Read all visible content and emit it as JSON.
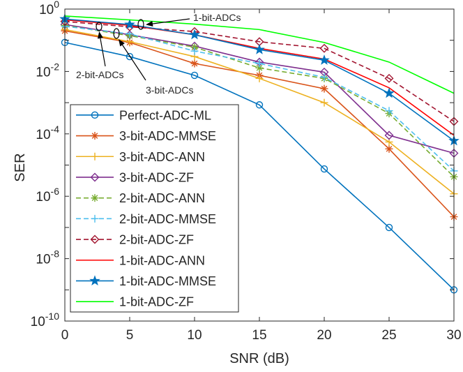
{
  "chart_data": {
    "type": "line",
    "title": "",
    "xlabel": "SNR (dB)",
    "ylabel": "SER",
    "xlim": [
      0,
      30
    ],
    "ylim": [
      1e-10,
      1
    ],
    "yscale": "log",
    "grid": false,
    "legend_position": "bottom-left",
    "x_ticks": [
      0,
      5,
      10,
      15,
      20,
      25,
      30
    ],
    "y_tick_bases": [
      "10",
      "10",
      "10",
      "10",
      "10",
      "10"
    ],
    "y_tick_exponents": [
      "0",
      "-2",
      "-4",
      "-6",
      "-8",
      "-10"
    ],
    "x": [
      0,
      5,
      10,
      15,
      20,
      25,
      30
    ],
    "series": [
      {
        "name": "Perfect-ADC-ML",
        "color": "#0072BD",
        "dash": "solid",
        "marker": "circle",
        "values": [
          0.085,
          0.03,
          0.0075,
          0.00085,
          7.5e-06,
          1e-07,
          1e-09
        ]
      },
      {
        "name": "3-bit-ADC-MMSE",
        "color": "#D95319",
        "dash": "solid",
        "marker": "asterisk",
        "values": [
          0.2,
          0.085,
          0.018,
          0.0075,
          0.0028,
          3.3e-05,
          2.2e-07
        ]
      },
      {
        "name": "3-bit-ADC-ANN",
        "color": "#EDB120",
        "dash": "solid",
        "marker": "plus",
        "values": [
          0.22,
          0.09,
          0.03,
          0.006,
          0.001,
          5.5e-05,
          1.2e-06
        ]
      },
      {
        "name": "3-bit-ADC-ZF",
        "color": "#7E2F8E",
        "dash": "solid",
        "marker": "diamond",
        "values": [
          0.32,
          0.15,
          0.065,
          0.02,
          0.0095,
          9e-05,
          2.4e-05
        ]
      },
      {
        "name": "2-bit-ADC-ANN",
        "color": "#77AC30",
        "dash": "dashed",
        "marker": "asterisk",
        "values": [
          0.3,
          0.14,
          0.06,
          0.013,
          0.006,
          0.00045,
          4.2e-06
        ]
      },
      {
        "name": "2-bit-ADC-MMSE",
        "color": "#4DBEEE",
        "dash": "dashed",
        "marker": "plus",
        "values": [
          0.28,
          0.16,
          0.045,
          0.018,
          0.0065,
          0.00055,
          6.5e-06
        ]
      },
      {
        "name": "2-bit-ADC-ZF",
        "color": "#A2142F",
        "dash": "dashed",
        "marker": "diamond",
        "values": [
          0.4,
          0.27,
          0.19,
          0.09,
          0.055,
          0.006,
          0.00025
        ]
      },
      {
        "name": "1-bit-ADC-ANN",
        "color": "#FF0000",
        "dash": "solid",
        "marker": "none",
        "values": [
          0.45,
          0.3,
          0.15,
          0.055,
          0.025,
          0.003,
          9e-05
        ]
      },
      {
        "name": "1-bit-ADC-MMSE",
        "color": "#0072BD",
        "dash": "solid",
        "marker": "star",
        "values": [
          0.48,
          0.32,
          0.15,
          0.05,
          0.023,
          0.002,
          6e-05
        ]
      },
      {
        "name": "1-bit-ADC-ZF",
        "color": "#00FF00",
        "dash": "solid",
        "marker": "none",
        "values": [
          0.6,
          0.45,
          0.33,
          0.22,
          0.085,
          0.02,
          0.002
        ]
      }
    ],
    "annotations": [
      {
        "text": "1-bit-ADCs"
      },
      {
        "text": "2-bit-ADCs"
      },
      {
        "text": "3-bit-ADCs"
      }
    ]
  }
}
